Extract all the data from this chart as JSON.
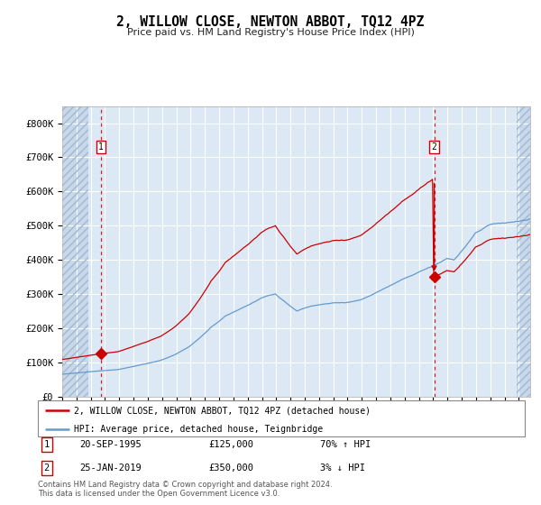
{
  "title": "2, WILLOW CLOSE, NEWTON ABBOT, TQ12 4PZ",
  "subtitle": "Price paid vs. HM Land Registry's House Price Index (HPI)",
  "legend_label_red": "2, WILLOW CLOSE, NEWTON ABBOT, TQ12 4PZ (detached house)",
  "legend_label_blue": "HPI: Average price, detached house, Teignbridge",
  "sale1_date": "20-SEP-1995",
  "sale1_price": "£125,000",
  "sale1_hpi": "70% ↑ HPI",
  "sale2_date": "25-JAN-2019",
  "sale2_price": "£350,000",
  "sale2_hpi": "3% ↓ HPI",
  "footer": "Contains HM Land Registry data © Crown copyright and database right 2024.\nThis data is licensed under the Open Government Licence v3.0.",
  "bg_color": "#dce9f5",
  "hatch_color": "#c8d8ea",
  "grid_color": "#ffffff",
  "red_color": "#cc0000",
  "blue_color": "#6699cc",
  "sale1_x": 1995.72,
  "sale1_y": 125000,
  "sale2_x": 2019.07,
  "sale2_y": 350000,
  "ylim": [
    0,
    850000
  ],
  "xlim_start": 1993.0,
  "xlim_end": 2025.8,
  "yticks": [
    0,
    100000,
    200000,
    300000,
    400000,
    500000,
    600000,
    700000,
    800000
  ],
  "ytick_labels": [
    "£0",
    "£100K",
    "£200K",
    "£300K",
    "£400K",
    "£500K",
    "£600K",
    "£700K",
    "£800K"
  ]
}
